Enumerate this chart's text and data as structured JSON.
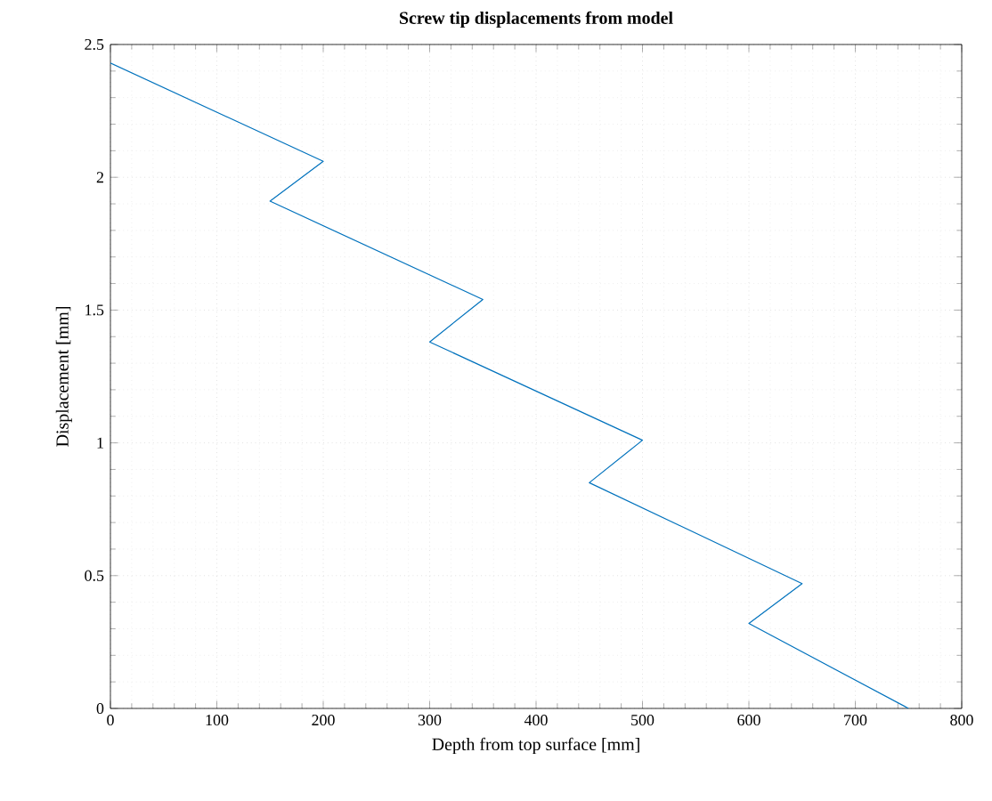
{
  "chart_data": {
    "type": "line",
    "title": "Screw tip displacements from model",
    "xlabel": "Depth from top surface [mm]",
    "ylabel": "Displacement [mm]",
    "x": [
      0,
      200,
      150,
      350,
      300,
      500,
      450,
      650,
      600,
      750
    ],
    "series": [
      {
        "color": "#0072bd",
        "values": [
          2.43,
          2.06,
          1.91,
          1.54,
          1.38,
          1.01,
          0.85,
          0.47,
          0.32,
          0
        ]
      }
    ],
    "xlim": [
      0,
      800
    ],
    "ylim": [
      0,
      2.5
    ],
    "xticks": [
      0,
      100,
      200,
      300,
      400,
      500,
      600,
      700,
      800
    ],
    "yticks": [
      0,
      0.5,
      1,
      1.5,
      2,
      2.5
    ],
    "grid": true,
    "marker": "none",
    "line_style": "solid"
  }
}
